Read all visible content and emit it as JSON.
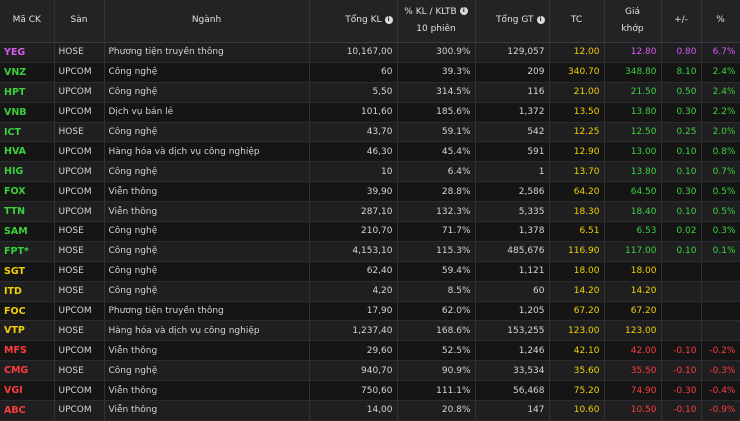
{
  "header": {
    "symbol": "Mã CK",
    "exchange": "Sàn",
    "industry": "Ngành",
    "total_volume": "Tổng KL",
    "pct_volume_line1": "% KL / KLTB",
    "pct_volume_line2": "10 phiên",
    "total_value": "Tổng GT",
    "ref_price": "TC",
    "match_price_line1": "Giá",
    "match_price_line2": "khớp",
    "change": "+/-",
    "change_pct": "%",
    "info_icon": "i"
  },
  "colors": {
    "up": "#3ad13a",
    "down": "#ff3b3b",
    "reference": "#f0d000",
    "ceiling": "#d65cf0"
  },
  "rows": [
    {
      "symbol": "YEG",
      "exchange": "HOSE",
      "industry": "Phương tiện truyền thông",
      "volume": "10,167,00",
      "pct": "300.9%",
      "value": "129,057",
      "tc": "12.00",
      "price": "12.80",
      "change": "0.80",
      "change_pct": "6.7%",
      "state": "ceil"
    },
    {
      "symbol": "VNZ",
      "exchange": "UPCOM",
      "industry": "Công nghệ",
      "volume": "60",
      "pct": "39.3%",
      "value": "209",
      "tc": "340.70",
      "price": "348.80",
      "change": "8.10",
      "change_pct": "2.4%",
      "state": "up"
    },
    {
      "symbol": "HPT",
      "exchange": "UPCOM",
      "industry": "Công nghệ",
      "volume": "5,50",
      "pct": "314.5%",
      "value": "116",
      "tc": "21.00",
      "price": "21.50",
      "change": "0.50",
      "change_pct": "2.4%",
      "state": "up"
    },
    {
      "symbol": "VNB",
      "exchange": "UPCOM",
      "industry": "Dịch vụ bán lẻ",
      "volume": "101,60",
      "pct": "185.6%",
      "value": "1,372",
      "tc": "13.50",
      "price": "13.80",
      "change": "0.30",
      "change_pct": "2.2%",
      "state": "up"
    },
    {
      "symbol": "ICT",
      "exchange": "HOSE",
      "industry": "Công nghệ",
      "volume": "43,70",
      "pct": "59.1%",
      "value": "542",
      "tc": "12.25",
      "price": "12.50",
      "change": "0.25",
      "change_pct": "2.0%",
      "state": "up"
    },
    {
      "symbol": "HVA",
      "exchange": "UPCOM",
      "industry": "Hàng hóa và dịch vụ công nghiệp",
      "volume": "46,30",
      "pct": "45.4%",
      "value": "591",
      "tc": "12.90",
      "price": "13.00",
      "change": "0.10",
      "change_pct": "0.8%",
      "state": "up"
    },
    {
      "symbol": "HIG",
      "exchange": "UPCOM",
      "industry": "Công nghệ",
      "volume": "10",
      "pct": "6.4%",
      "value": "1",
      "tc": "13.70",
      "price": "13.80",
      "change": "0.10",
      "change_pct": "0.7%",
      "state": "up"
    },
    {
      "symbol": "FOX",
      "exchange": "UPCOM",
      "industry": "Viễn thông",
      "volume": "39,90",
      "pct": "28.8%",
      "value": "2,586",
      "tc": "64.20",
      "price": "64.50",
      "change": "0.30",
      "change_pct": "0.5%",
      "state": "up"
    },
    {
      "symbol": "TTN",
      "exchange": "UPCOM",
      "industry": "Viễn thông",
      "volume": "287,10",
      "pct": "132.3%",
      "value": "5,335",
      "tc": "18.30",
      "price": "18.40",
      "change": "0.10",
      "change_pct": "0.5%",
      "state": "up"
    },
    {
      "symbol": "SAM",
      "exchange": "HOSE",
      "industry": "Công nghệ",
      "volume": "210,70",
      "pct": "71.7%",
      "value": "1,378",
      "tc": "6.51",
      "price": "6.53",
      "change": "0.02",
      "change_pct": "0.3%",
      "state": "up"
    },
    {
      "symbol": "FPT*",
      "exchange": "HOSE",
      "industry": "Công nghệ",
      "volume": "4,153,10",
      "pct": "115.3%",
      "value": "485,676",
      "tc": "116.90",
      "price": "117.00",
      "change": "0.10",
      "change_pct": "0.1%",
      "state": "up"
    },
    {
      "symbol": "SGT",
      "exchange": "HOSE",
      "industry": "Công nghệ",
      "volume": "62,40",
      "pct": "59.4%",
      "value": "1,121",
      "tc": "18.00",
      "price": "18.00",
      "change": "",
      "change_pct": "",
      "state": "ref"
    },
    {
      "symbol": "ITD",
      "exchange": "HOSE",
      "industry": "Công nghệ",
      "volume": "4,20",
      "pct": "8.5%",
      "value": "60",
      "tc": "14.20",
      "price": "14.20",
      "change": "",
      "change_pct": "",
      "state": "ref"
    },
    {
      "symbol": "FOC",
      "exchange": "UPCOM",
      "industry": "Phương tiện truyền thông",
      "volume": "17,90",
      "pct": "62.0%",
      "value": "1,205",
      "tc": "67.20",
      "price": "67.20",
      "change": "",
      "change_pct": "",
      "state": "ref"
    },
    {
      "symbol": "VTP",
      "exchange": "HOSE",
      "industry": "Hàng hóa và dịch vụ công nghiệp",
      "volume": "1,237,40",
      "pct": "168.6%",
      "value": "153,255",
      "tc": "123.00",
      "price": "123.00",
      "change": "",
      "change_pct": "",
      "state": "ref"
    },
    {
      "symbol": "MFS",
      "exchange": "UPCOM",
      "industry": "Viễn thông",
      "volume": "29,60",
      "pct": "52.5%",
      "value": "1,246",
      "tc": "42.10",
      "price": "42.00",
      "change": "-0.10",
      "change_pct": "-0.2%",
      "state": "down"
    },
    {
      "symbol": "CMG",
      "exchange": "HOSE",
      "industry": "Công nghệ",
      "volume": "940,70",
      "pct": "90.9%",
      "value": "33,534",
      "tc": "35.60",
      "price": "35.50",
      "change": "-0.10",
      "change_pct": "-0.3%",
      "state": "down"
    },
    {
      "symbol": "VGI",
      "exchange": "UPCOM",
      "industry": "Viễn thông",
      "volume": "750,60",
      "pct": "111.1%",
      "value": "56,468",
      "tc": "75.20",
      "price": "74.90",
      "change": "-0.30",
      "change_pct": "-0.4%",
      "state": "down"
    },
    {
      "symbol": "ABC",
      "exchange": "UPCOM",
      "industry": "Viễn thông",
      "volume": "14,00",
      "pct": "20.8%",
      "value": "147",
      "tc": "10.60",
      "price": "10.50",
      "change": "-0.10",
      "change_pct": "-0.9%",
      "state": "down"
    }
  ]
}
